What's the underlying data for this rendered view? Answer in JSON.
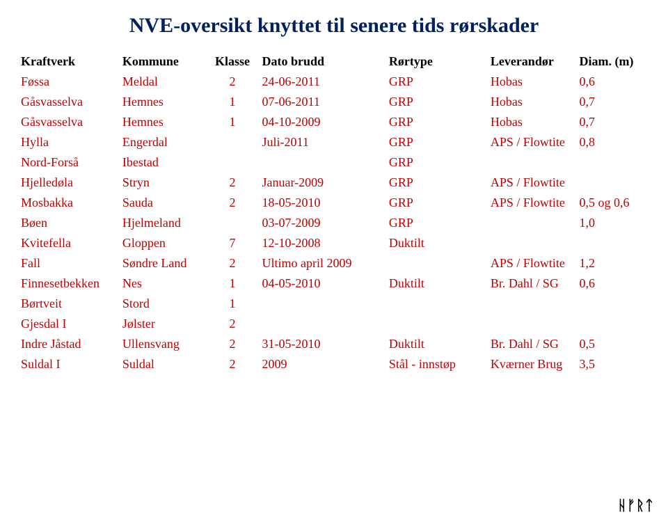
{
  "title": "NVE-oversikt knyttet til senere tids rørskader",
  "title_color": "#002060",
  "title_fontsize": 30,
  "header_color": "#000000",
  "cell_color": "#c00000",
  "background_color": "#ffffff",
  "columns": [
    {
      "key": "kraftverk",
      "label": "Kraftverk",
      "class": "col-kraftverk"
    },
    {
      "key": "kommune",
      "label": "Kommune",
      "class": "col-kommune"
    },
    {
      "key": "klasse",
      "label": "Klasse",
      "class": "col-klasse"
    },
    {
      "key": "dato",
      "label": "Dato brudd",
      "class": "col-dato"
    },
    {
      "key": "rortype",
      "label": "Rørtype",
      "class": "col-rortype"
    },
    {
      "key": "lev",
      "label": "Leverandør",
      "class": "col-lev"
    },
    {
      "key": "diam",
      "label": "Diam. (m)",
      "class": "col-diam"
    }
  ],
  "rows": [
    {
      "kraftverk": "Føssa",
      "kommune": "Meldal",
      "klasse": "2",
      "dato": "24-06-2011",
      "rortype": "GRP",
      "lev": "Hobas",
      "diam": "0,6"
    },
    {
      "kraftverk": "Gåsvasselva",
      "kommune": "Hemnes",
      "klasse": "1",
      "dato": "07-06-2011",
      "rortype": "GRP",
      "lev": "Hobas",
      "diam": "0,7"
    },
    {
      "kraftverk": "Gåsvasselva",
      "kommune": "Hemnes",
      "klasse": "1",
      "dato": "04-10-2009",
      "rortype": "GRP",
      "lev": "Hobas",
      "diam": "0,7"
    },
    {
      "kraftverk": "Hylla",
      "kommune": "Engerdal",
      "klasse": "",
      "dato": "Juli-2011",
      "rortype": "GRP",
      "lev": "APS / Flowtite",
      "diam": "0,8"
    },
    {
      "kraftverk": "Nord-Forså",
      "kommune": "Ibestad",
      "klasse": "",
      "dato": "",
      "rortype": "GRP",
      "lev": "",
      "diam": ""
    },
    {
      "kraftverk": "Hjelledøla",
      "kommune": "Stryn",
      "klasse": "2",
      "dato": "Januar-2009",
      "rortype": "GRP",
      "lev": "APS / Flowtite",
      "diam": ""
    },
    {
      "kraftverk": "Mosbakka",
      "kommune": "Sauda",
      "klasse": "2",
      "dato": "18-05-2010",
      "rortype": "GRP",
      "lev": "APS / Flowtite",
      "diam": "0,5 og 0,6"
    },
    {
      "kraftverk": "Bøen",
      "kommune": "Hjelmeland",
      "klasse": "",
      "dato": "03-07-2009",
      "rortype": "GRP",
      "lev": "",
      "diam": "1,0"
    },
    {
      "kraftverk": "Kvitefella",
      "kommune": "Gloppen",
      "klasse": "7",
      "dato": "12-10-2008",
      "rortype": "Duktilt",
      "lev": "",
      "diam": ""
    },
    {
      "kraftverk": "Fall",
      "kommune": "Søndre Land",
      "klasse": "2",
      "dato": "Ultimo april 2009",
      "rortype": "",
      "lev": "APS / Flowtite",
      "diam": "1,2"
    },
    {
      "kraftverk": "Finnesetbekken",
      "kommune": "Nes",
      "klasse": "1",
      "dato": "04-05-2010",
      "rortype": "Duktilt",
      "lev": "Br. Dahl / SG",
      "diam": "0,6"
    },
    {
      "kraftverk": "Børtveit",
      "kommune": "Stord",
      "klasse": "1",
      "dato": "",
      "rortype": "",
      "lev": "",
      "diam": ""
    },
    {
      "kraftverk": "Gjesdal I",
      "kommune": "Jølster",
      "klasse": "2",
      "dato": "",
      "rortype": "",
      "lev": "",
      "diam": ""
    },
    {
      "kraftverk": "Indre Jåstad",
      "kommune": "Ullensvang",
      "klasse": "2",
      "dato": "31-05-2010",
      "rortype": "Duktilt",
      "lev": "Br. Dahl / SG",
      "diam": "0,5"
    },
    {
      "kraftverk": "Suldal I",
      "kommune": "Suldal",
      "klasse": "2",
      "dato": "2009",
      "rortype": "Stål - innstøp",
      "lev": "Kværner Brug",
      "diam": "3,5"
    }
  ],
  "footer_logo": "ᚺᚠᚱᛏ"
}
